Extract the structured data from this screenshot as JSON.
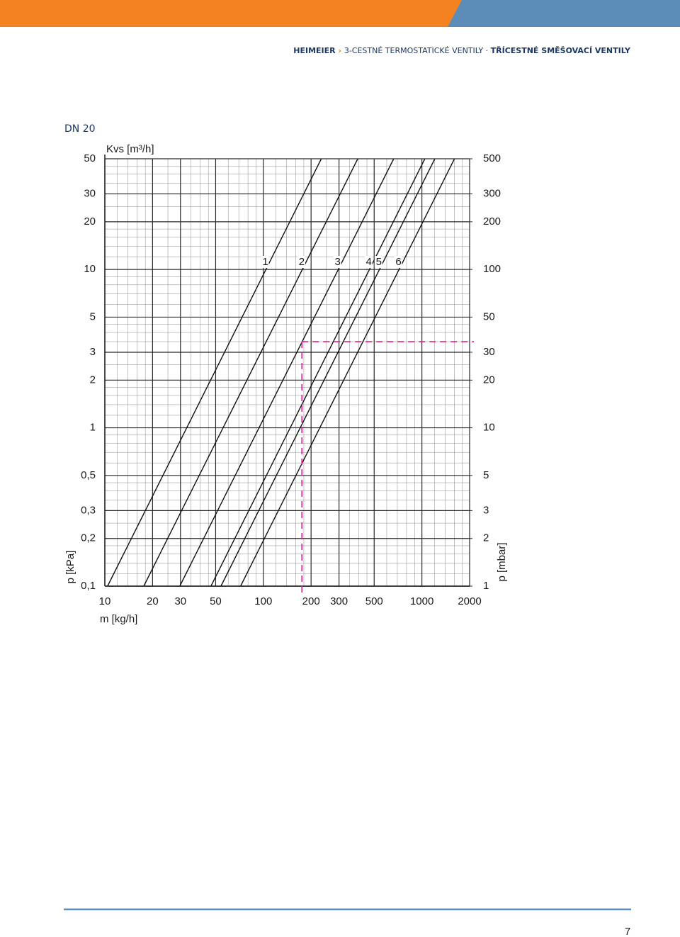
{
  "header": {
    "brand": "HEIMEIER",
    "subtitle": "3-CESTNÉ TERMOSTATICKÉ VENTILY · ",
    "subtitle_bold": "TŘÍCESTNÉ SMĚŠOVACÍ VENTILY"
  },
  "section": "DN 20",
  "chart_data": {
    "type": "line",
    "title": "Kvs [m³/h]",
    "x_label": "m [kg/h]",
    "y_label": "p [kPa]",
    "y2_label": "p [mbar]",
    "x_log": true,
    "y_log": true,
    "grid": true,
    "minor_grid": true,
    "xlim": [
      10,
      2000
    ],
    "xticks": [
      10,
      20,
      30,
      50,
      100,
      200,
      300,
      500,
      1000,
      2000
    ],
    "ylim": [
      0.1,
      50
    ],
    "yticks": [
      50,
      30,
      20,
      10,
      5,
      3,
      2,
      1,
      {
        "value": 0.5,
        "label": "0,5"
      },
      {
        "value": 0.3,
        "label": "0,3"
      },
      {
        "value": 0.2,
        "label": "0,2"
      },
      {
        "value": 0.1,
        "label": "0,1"
      }
    ],
    "y2lim": [
      1,
      500
    ],
    "y2ticks": [
      500,
      300,
      200,
      100,
      50,
      30,
      20,
      10,
      5,
      3,
      2,
      1
    ],
    "series": [
      {
        "name": "1",
        "color": "#111111",
        "x": [
          10.4,
          232
        ],
        "values": [
          0.1,
          50
        ]
      },
      {
        "name": "2",
        "color": "#111111",
        "x": [
          17.6,
          394
        ],
        "values": [
          0.1,
          50
        ]
      },
      {
        "name": "3",
        "color": "#111111",
        "x": [
          29.7,
          664
        ],
        "values": [
          0.1,
          50
        ]
      },
      {
        "name": "4",
        "color": "#111111",
        "x": [
          46.7,
          1044
        ],
        "values": [
          0.1,
          50
        ]
      },
      {
        "name": "5",
        "color": "#111111",
        "x": [
          54,
          1207
        ],
        "values": [
          0.1,
          50
        ]
      },
      {
        "name": "6",
        "color": "#111111",
        "x": [
          71.8,
          1605
        ],
        "values": [
          0.1,
          50
        ]
      }
    ],
    "marker": {
      "x": 175,
      "y": 3.5,
      "color": "#d4268f"
    }
  },
  "footer": {
    "page": "7"
  }
}
